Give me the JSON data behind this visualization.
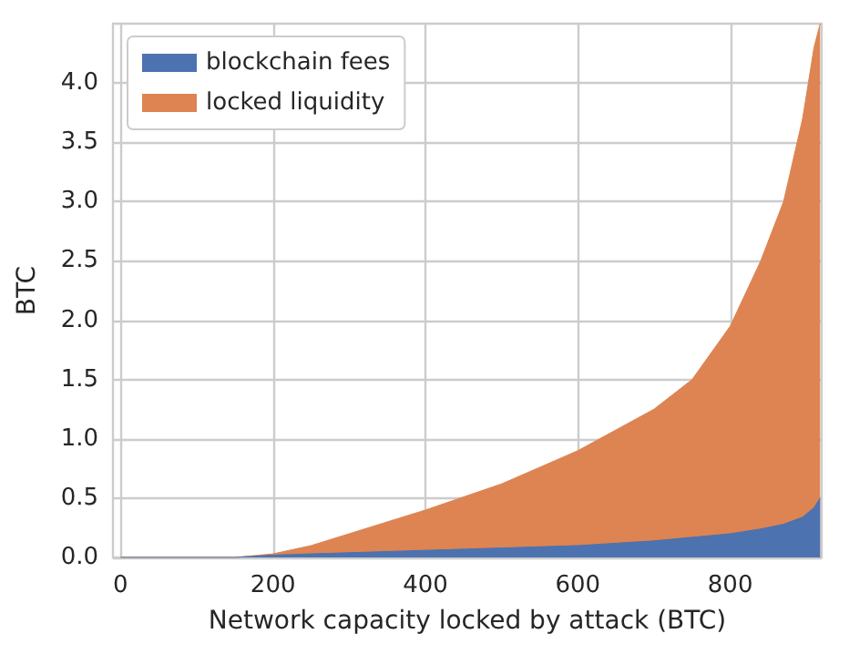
{
  "chart_data": {
    "type": "area",
    "stacked": true,
    "xlabel": "Network capacity locked by attack (BTC)",
    "ylabel": "BTC",
    "x": [
      0,
      100,
      150,
      200,
      250,
      300,
      400,
      500,
      600,
      700,
      750,
      800,
      840,
      870,
      895,
      910,
      918
    ],
    "series": [
      {
        "name": "blockchain fees",
        "color": "#4c72b0",
        "values": [
          0,
          0,
          0,
          0.02,
          0.03,
          0.04,
          0.06,
          0.08,
          0.1,
          0.14,
          0.17,
          0.2,
          0.24,
          0.28,
          0.34,
          0.42,
          0.5
        ]
      },
      {
        "name": "locked liquidity",
        "color": "#dd8452",
        "values": [
          0,
          0,
          0,
          0.01,
          0.07,
          0.16,
          0.34,
          0.54,
          0.8,
          1.11,
          1.33,
          1.75,
          2.26,
          2.72,
          3.36,
          3.88,
          4.0
        ]
      }
    ],
    "xlim": [
      -10,
      920
    ],
    "ylim": [
      0,
      4.5
    ],
    "xticks": [
      0,
      200,
      400,
      600,
      800
    ],
    "yticks": [
      {
        "value": 0,
        "label": "0.0"
      },
      0.5,
      {
        "value": 1,
        "label": "1.0"
      },
      1.5,
      {
        "value": 2,
        "label": "2.0"
      },
      2.5,
      {
        "value": 3,
        "label": "3.0"
      },
      3.5,
      {
        "value": 4,
        "label": "4.0"
      }
    ],
    "grid": true,
    "legend": "top left"
  }
}
